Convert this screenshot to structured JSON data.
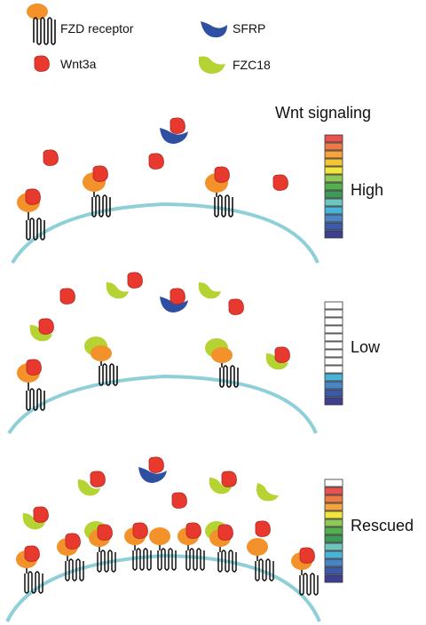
{
  "legend": {
    "fzd_label": "FZD receptor",
    "wnt_label": "Wnt3a",
    "sfrp_label": "SFRP",
    "fzc18_label": "FZC18"
  },
  "signaling_title": "Wnt signaling",
  "panels": [
    {
      "state_label": "High",
      "meter": [
        "#e8524f",
        "#ee7a43",
        "#f5a33a",
        "#f6c531",
        "#f2e53c",
        "#8fc955",
        "#54b04e",
        "#3c9a5a",
        "#6fc6be",
        "#49b3d9",
        "#4a86c6",
        "#3d5aa8",
        "#3f3f91"
      ]
    },
    {
      "state_label": "Low",
      "meter": [
        "#ffffff",
        "#ffffff",
        "#ffffff",
        "#ffffff",
        "#ffffff",
        "#ffffff",
        "#ffffff",
        "#ffffff",
        "#ffffff",
        "#49b3d9",
        "#4a86c6",
        "#3d5aa8",
        "#3f3f91"
      ]
    },
    {
      "state_label": "Rescued",
      "meter": [
        "#ffffff",
        "#e8524f",
        "#ee7a43",
        "#f5a33a",
        "#f2e53c",
        "#8fc955",
        "#54b04e",
        "#3c9a5a",
        "#6fc6be",
        "#49b3d9",
        "#4a86c6",
        "#3d5aa8",
        "#3f3f91"
      ]
    }
  ],
  "colors": {
    "fzd": "#f3922a",
    "wnt": "#e8392e",
    "sfrp": "#2f4fa3",
    "fzc18": "#b5d333",
    "membrane": "#8fd0d8"
  }
}
